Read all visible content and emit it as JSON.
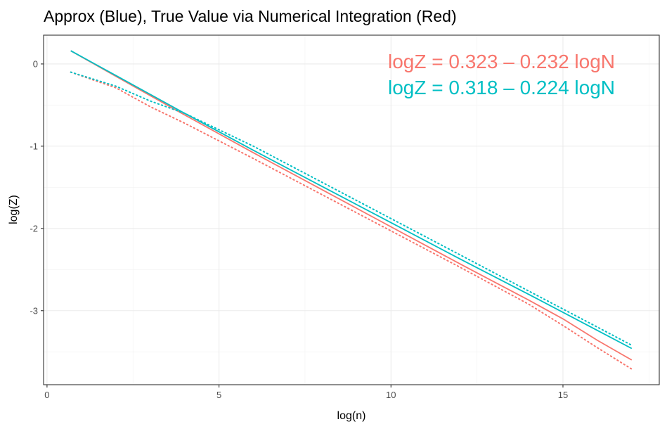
{
  "chart_data": {
    "type": "line",
    "title": "Approx (Blue), True Value via Numerical Integration (Red)",
    "xlabel": "log(n)",
    "ylabel": "log(Z)",
    "xlim": [
      -0.1,
      17.8
    ],
    "ylim": [
      -3.9,
      0.35
    ],
    "x_ticks": [
      0,
      5,
      10,
      15
    ],
    "y_ticks": [
      0,
      -1,
      -2,
      -3
    ],
    "x_tick_labels": [
      "0",
      "5",
      "10",
      "15"
    ],
    "y_tick_labels": [
      "0",
      "-1",
      "-2",
      "-3"
    ],
    "grid": true,
    "colors": {
      "red": "#F8766D",
      "blue": "#00BFC4"
    },
    "annotations": [
      {
        "text": "logZ = 0.323 – 0.232 logN",
        "color": "#F8766D"
      },
      {
        "text": "logZ = 0.318 – 0.224 logN",
        "color": "#00BFC4"
      }
    ],
    "series": [
      {
        "color": "#F8766D",
        "style": "solid",
        "x": [
          0.69,
          2.0,
          4.0,
          6.0,
          8.0,
          10.0,
          12.0,
          14.0,
          15.0,
          16.0,
          17.0
        ],
        "y": [
          0.16,
          -0.15,
          -0.62,
          -1.08,
          -1.53,
          -1.98,
          -2.43,
          -2.87,
          -3.1,
          -3.36,
          -3.6
        ]
      },
      {
        "color": "#00BFC4",
        "style": "solid",
        "x": [
          0.69,
          2.0,
          4.0,
          6.0,
          8.0,
          10.0,
          12.0,
          14.0,
          16.0,
          17.0
        ],
        "y": [
          0.16,
          -0.14,
          -0.6,
          -1.05,
          -1.49,
          -1.93,
          -2.37,
          -2.8,
          -3.24,
          -3.46
        ]
      },
      {
        "color": "#F8766D",
        "style": "dotted",
        "x": [
          0.69,
          2.0,
          3.0,
          4.0,
          6.0,
          8.0,
          10.0,
          12.0,
          14.0,
          15.0,
          16.0,
          17.0
        ],
        "y": [
          -0.1,
          -0.29,
          -0.52,
          -0.72,
          -1.15,
          -1.59,
          -2.03,
          -2.47,
          -2.92,
          -3.18,
          -3.45,
          -3.71
        ]
      },
      {
        "color": "#00BFC4",
        "style": "dotted",
        "x": [
          0.69,
          2.0,
          3.0,
          4.0,
          6.0,
          8.0,
          10.0,
          12.0,
          14.0,
          16.0,
          17.0
        ],
        "y": [
          -0.1,
          -0.27,
          -0.45,
          -0.6,
          -1.0,
          -1.44,
          -1.88,
          -2.32,
          -2.76,
          -3.2,
          -3.42
        ]
      }
    ]
  }
}
